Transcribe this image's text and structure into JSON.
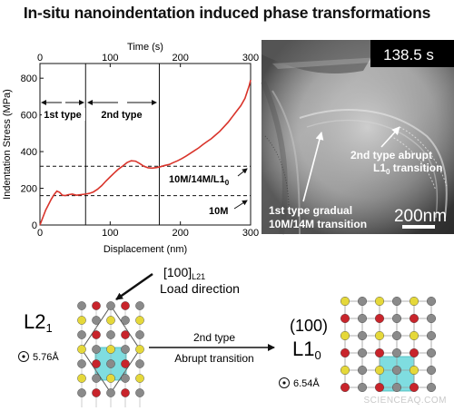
{
  "title": "In-situ nanoindentation induced phase transformations",
  "chart_data": {
    "type": "line",
    "xlabel": "Displacement (nm)",
    "x2label": "Time (s)",
    "ylabel": "Indentation Stress (MPa)",
    "xlim": [
      0,
      300
    ],
    "ylim": [
      0,
      880
    ],
    "x_ticks": [
      "0",
      "100",
      "200",
      "300"
    ],
    "x2_ticks": [
      "0",
      "100",
      "200",
      "300"
    ],
    "y_ticks": [
      "0",
      "200",
      "400",
      "600",
      "800"
    ],
    "series": [
      {
        "color": "#d9342b",
        "x": [
          0,
          4,
          8,
          12,
          16,
          20,
          24,
          28,
          32,
          36,
          40,
          46,
          52,
          58,
          64,
          70,
          76,
          82,
          88,
          94,
          100,
          106,
          112,
          118,
          124,
          130,
          136,
          142,
          148,
          154,
          160,
          166,
          172,
          178,
          184,
          190,
          196,
          202,
          208,
          214,
          220,
          226,
          232,
          238,
          244,
          250,
          256,
          262,
          268,
          274,
          280,
          286,
          292,
          298,
          300
        ],
        "y": [
          0,
          40,
          80,
          110,
          140,
          165,
          185,
          178,
          162,
          160,
          165,
          168,
          162,
          165,
          168,
          172,
          180,
          195,
          215,
          240,
          262,
          285,
          305,
          322,
          340,
          350,
          348,
          335,
          320,
          312,
          310,
          313,
          318,
          325,
          330,
          340,
          350,
          362,
          375,
          390,
          405,
          420,
          438,
          455,
          470,
          490,
          510,
          535,
          560,
          590,
          620,
          650,
          690,
          760,
          790
        ]
      }
    ],
    "type_dividers_nm": [
      65,
      170
    ],
    "type_labels": [
      "1st type",
      "2nd type"
    ],
    "dashed_levels": [
      {
        "value": 320,
        "label": "10M/14M/L1",
        "sub": "0"
      },
      {
        "value": 160,
        "label": "10M",
        "sub": ""
      }
    ]
  },
  "tem": {
    "time": "138.5 s",
    "label_2nd_a": "2nd type abrupt",
    "label_2nd_b": "L1",
    "label_2nd_b_sub": "0",
    "label_2nd_c": " transition",
    "label_1st_a": "1st type gradual",
    "label_1st_b": "10M/14M transition",
    "scale": "200nm"
  },
  "diagram": {
    "direction_a": "[100]",
    "direction_sub": "L21",
    "direction_b": "Load direction",
    "phase_left": "L2",
    "phase_left_sub": "1",
    "param_left": "5.76",
    "param_unit": "Å",
    "arrow_top": "2nd type",
    "arrow_bottom": "Abrupt transition",
    "plane": "(100)",
    "phase_right": "L1",
    "phase_right_sub": "0",
    "param_right": "6.54"
  },
  "watermark": "SCIENCEAQ.COM"
}
